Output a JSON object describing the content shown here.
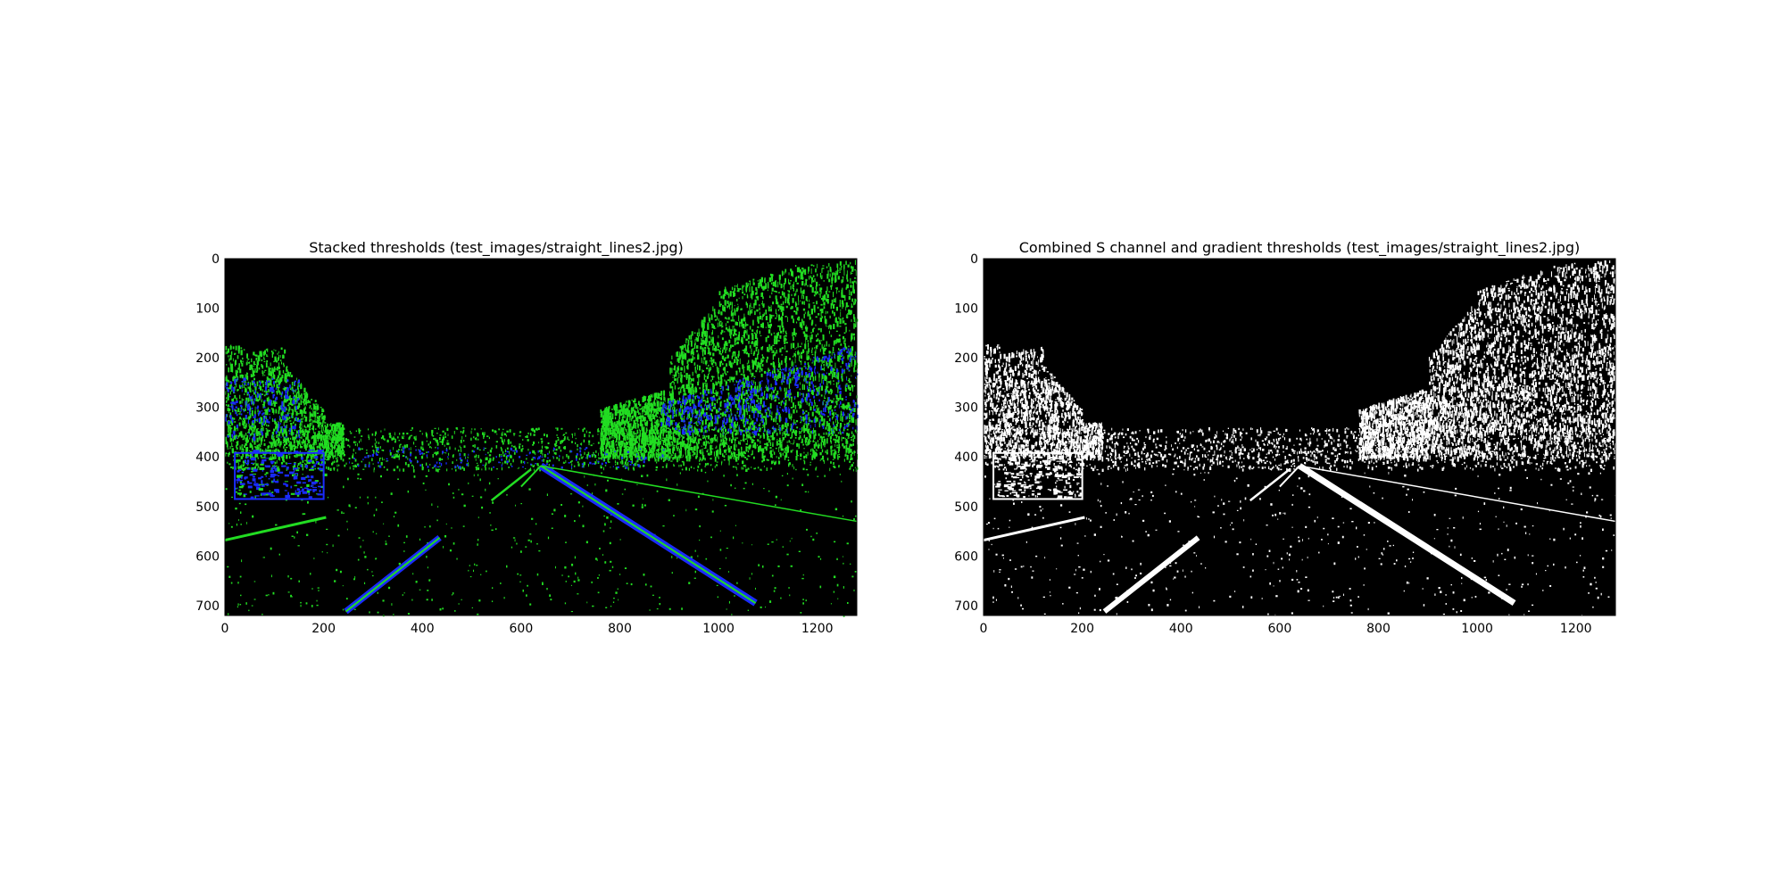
{
  "figure": {
    "background": "#ffffff",
    "panels": [
      {
        "title": "Stacked thresholds (test_images/straight_lines2.jpg)",
        "mode": "color",
        "xticks": [
          0,
          200,
          400,
          600,
          800,
          1000,
          1200
        ],
        "yticks": [
          0,
          100,
          200,
          300,
          400,
          500,
          600,
          700
        ],
        "xlim": [
          0,
          1280
        ],
        "ylim": [
          720,
          0
        ]
      },
      {
        "title": "Combined S channel and gradient thresholds (test_images/straight_lines2.jpg)",
        "mode": "binary",
        "xticks": [
          0,
          200,
          400,
          600,
          800,
          1000,
          1200
        ],
        "yticks": [
          0,
          100,
          200,
          300,
          400,
          500,
          600,
          700
        ],
        "xlim": [
          0,
          1280
        ],
        "ylim": [
          720,
          0
        ]
      }
    ],
    "colors": {
      "image_background": "#000000",
      "gradient_channel": "#22dd22",
      "s_channel": "#1a2cff",
      "binary_on": "#ffffff",
      "axis_text": "#000000"
    }
  }
}
